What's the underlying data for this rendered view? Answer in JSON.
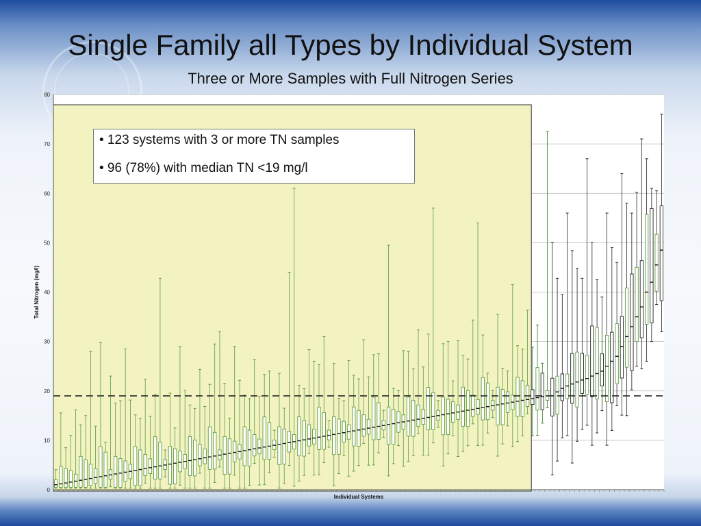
{
  "slide": {
    "title": "Single Family all Types by Individual System",
    "subtitle": "Three or More Samples with Full Nitrogen Series"
  },
  "notes": [
    "• 123 systems with 3 or more TN samples",
    "• 96 (78%) with median TN <19 mg/l"
  ],
  "colors": {
    "highlight_fill": "#f2f3c0",
    "green_box": "#5f9a44",
    "black_box": "#222222",
    "reference_line": "#333333"
  },
  "chart_data": {
    "type": "boxplot",
    "title": "Three or More Samples with Full Nitrogen Series",
    "xlabel": "Individual Systems",
    "ylabel": "Total Nitrogen (mg/l)",
    "ylim": [
      0,
      80
    ],
    "yticks": [
      0,
      10,
      20,
      30,
      40,
      50,
      60,
      70,
      80
    ],
    "grid": true,
    "reference_line": 19,
    "systems_count": 123,
    "highlighted_below_reference": 96,
    "median_start": 1,
    "median_end": 19,
    "tail_medians": [
      19.0,
      19.8,
      20.5,
      21.0,
      21.4,
      21.8,
      22.2,
      22.5,
      23.0,
      23.5,
      24.0,
      25.0,
      26.0,
      27.0,
      29.0,
      31.0,
      33.0,
      35.0,
      37.0,
      40.0,
      42.0,
      45.5,
      48.5
    ],
    "spike_maxima": {
      "4": 11,
      "7": 15,
      "8": 28,
      "10": 29.8,
      "12": 23,
      "14": 18,
      "15": 28.5,
      "22": 42.8,
      "26": 29,
      "33": 29.5,
      "34": 32,
      "37": 29,
      "44": 24,
      "48": 44,
      "49": 61,
      "53": 26,
      "55": 31,
      "66": 27.5,
      "68": 49.5,
      "72": 28,
      "76": 31.5,
      "77": 57,
      "80": 30,
      "86": 54,
      "90": 35.5,
      "93": 41.5,
      "100": 72.5,
      "104": 34.5,
      "106": 37,
      "108": 67,
      "111": 31,
      "113": 43.5,
      "115": 34.8,
      "119": 71,
      "121": 50.5,
      "123": 31
    }
  }
}
